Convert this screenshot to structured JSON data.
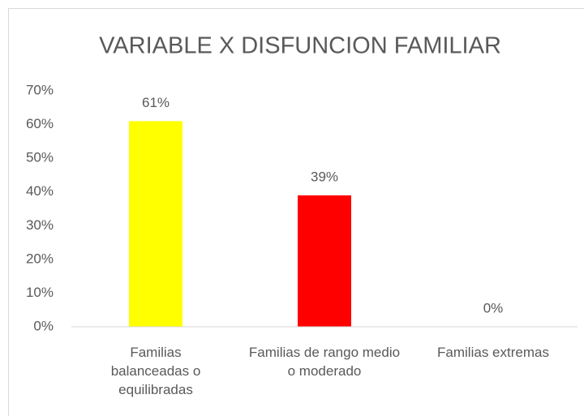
{
  "chart_data": {
    "type": "bar",
    "title": "VARIABLE X DISFUNCION FAMILIAR",
    "categories": [
      "Familias balanceadas o equilibradas",
      "Familias de rango medio o moderado",
      "Familias extremas"
    ],
    "values": [
      61,
      39,
      0
    ],
    "value_labels": [
      "61%",
      "39%",
      "0%"
    ],
    "colors": [
      "#ffff00",
      "#ff0000",
      "#a5a5a5"
    ],
    "ylim": [
      0,
      70
    ],
    "yticks": [
      {
        "value": 0,
        "label": "0%"
      },
      {
        "value": 10,
        "label": "10%"
      },
      {
        "value": 20,
        "label": "20%"
      },
      {
        "value": 30,
        "label": "30%"
      },
      {
        "value": 40,
        "label": "40%"
      },
      {
        "value": 50,
        "label": "50%"
      },
      {
        "value": 60,
        "label": "60%"
      },
      {
        "value": 70,
        "label": "70%"
      }
    ],
    "grid": false
  }
}
